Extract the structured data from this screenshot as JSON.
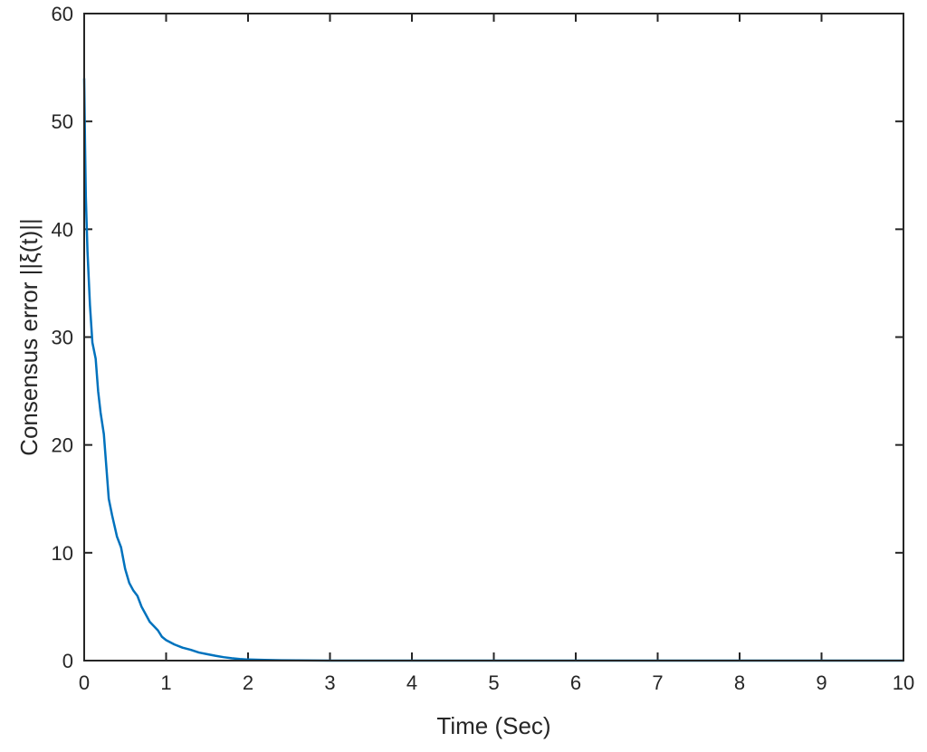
{
  "chart_data": {
    "type": "line",
    "title": "",
    "xlabel": "Time (Sec)",
    "ylabel": "Consensus error ||ξ(t)||",
    "xlim": [
      0,
      10
    ],
    "ylim": [
      0,
      60
    ],
    "xticks": [
      0,
      1,
      2,
      3,
      4,
      5,
      6,
      7,
      8,
      9,
      10
    ],
    "yticks": [
      0,
      10,
      20,
      30,
      40,
      50,
      60
    ],
    "grid": false,
    "box": true,
    "series": [
      {
        "color": "#0072BD",
        "x": [
          0,
          0.01,
          0.02,
          0.04,
          0.07,
          0.1,
          0.14,
          0.17,
          0.2,
          0.24,
          0.28,
          0.3,
          0.34,
          0.4,
          0.45,
          0.5,
          0.55,
          0.6,
          0.65,
          0.7,
          0.75,
          0.8,
          0.85,
          0.9,
          0.95,
          1.0,
          1.1,
          1.2,
          1.3,
          1.4,
          1.5,
          1.6,
          1.7,
          1.8,
          1.9,
          2.0,
          2.2,
          2.4,
          2.6,
          2.8,
          3.0,
          3.5,
          4,
          5,
          6,
          7,
          8,
          9,
          10
        ],
        "y": [
          54,
          48,
          43,
          38,
          33,
          29.5,
          28,
          25,
          23,
          21,
          17,
          15,
          13.5,
          11.5,
          10.5,
          8.5,
          7.2,
          6.5,
          6,
          5,
          4.3,
          3.6,
          3.2,
          2.8,
          2.2,
          1.9,
          1.5,
          1.2,
          1.0,
          0.75,
          0.6,
          0.45,
          0.32,
          0.22,
          0.15,
          0.1,
          0.06,
          0.03,
          0.02,
          0.01,
          0.005,
          0.002,
          0.001,
          0,
          0,
          0,
          0,
          0,
          0
        ]
      }
    ]
  }
}
